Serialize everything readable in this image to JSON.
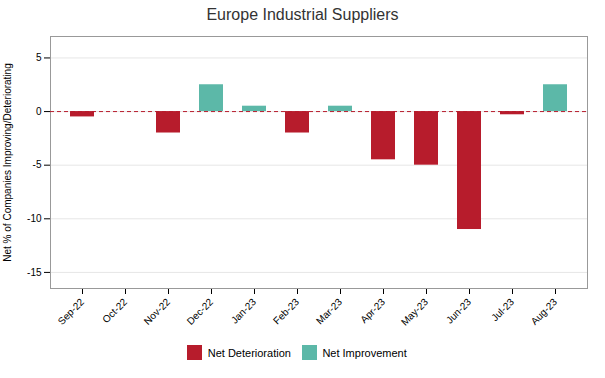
{
  "chart_data": {
    "type": "bar",
    "title": "Europe Industrial Suppliers",
    "ylabel": "Net % of Companies Improving/Deteriorating",
    "categories": [
      "Sep-22",
      "Oct-22",
      "Nov-22",
      "Dec-22",
      "Jan-23",
      "Feb-23",
      "Mar-23",
      "Apr-23",
      "May-23",
      "Jun-23",
      "Jul-23",
      "Aug-23"
    ],
    "series": [
      {
        "name": "Net Deterioration",
        "color": "#b71c2c",
        "values": [
          -0.5,
          0.0,
          -2.0,
          null,
          null,
          -2.0,
          null,
          -4.5,
          -5.0,
          -11.0,
          -0.3,
          null
        ]
      },
      {
        "name": "Net Improvement",
        "color": "#5cb8a8",
        "values": [
          null,
          null,
          null,
          2.5,
          0.5,
          null,
          0.5,
          null,
          null,
          null,
          null,
          2.5
        ]
      }
    ],
    "stacked": true,
    "ylim": [
      -16.5,
      7
    ],
    "yticks": [
      -15,
      -10,
      -5,
      0,
      5
    ],
    "grid": true
  }
}
